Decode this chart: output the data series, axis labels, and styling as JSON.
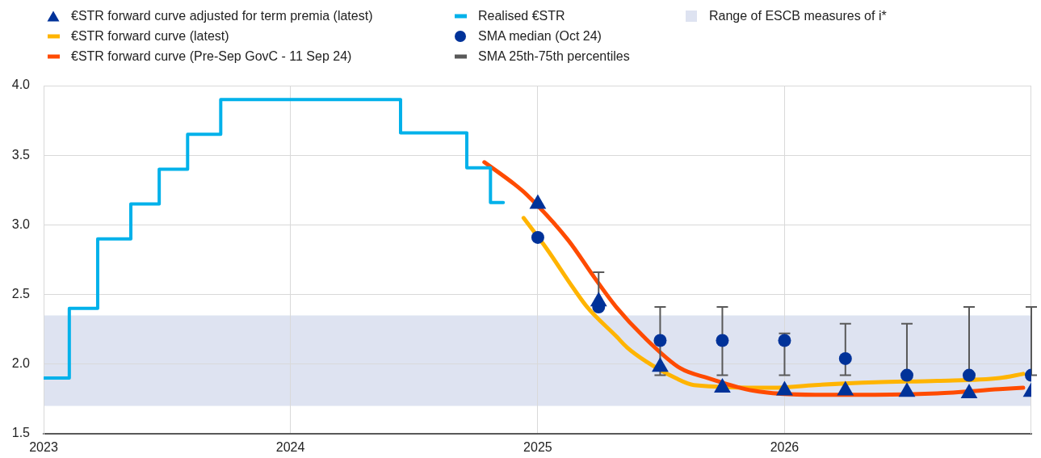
{
  "chart_data": {
    "type": "line",
    "xlim": [
      "2023-01-01",
      "2027-01-01"
    ],
    "xticks": [
      "2023",
      "2024",
      "2025",
      "2026"
    ],
    "ylim": [
      1.5,
      4.0
    ],
    "yticks": [
      1.5,
      {
        "value": 2,
        "label": "2.0"
      },
      2.5,
      {
        "value": 3,
        "label": "3.0"
      },
      3.5,
      {
        "value": 4,
        "label": "4.0"
      }
    ],
    "grid": true,
    "legend": "top",
    "bands": [
      {
        "axis": "y",
        "from": 1.7,
        "to": 2.35,
        "label": "Range of ESCB measures of i*",
        "color": "#dee3f1"
      }
    ],
    "series": [
      {
        "name": "€STR forward curve adjusted for term premia (latest)",
        "type": "scatter",
        "marker": "triangle",
        "color": "#003299",
        "x": [
          "2025-01-01",
          "2025-04-01",
          "2025-07-01",
          "2025-10-01",
          "2026-01-01",
          "2026-04-01",
          "2026-07-01",
          "2026-10-01",
          "2027-01-01"
        ],
        "values": [
          3.15,
          2.45,
          1.98,
          1.83,
          1.81,
          1.81,
          1.8,
          1.79,
          1.8
        ]
      },
      {
        "name": "€STR forward curve (latest)",
        "color": "#ffb400",
        "x": [
          "2024-12-11",
          "2025-01-14",
          "2025-02-22",
          "2025-03-15",
          "2025-04-27",
          "2025-05-13",
          "2025-06-10",
          "2025-07-24",
          "2025-08-20",
          "2025-12-15",
          "2026-02-15",
          "2026-05-15",
          "2026-08-15",
          "2026-11-15",
          "2026-12-20"
        ],
        "values": [
          3.05,
          2.83,
          2.55,
          2.41,
          2.2,
          2.12,
          2.02,
          1.9,
          1.85,
          1.83,
          1.85,
          1.87,
          1.88,
          1.9,
          1.93
        ]
      },
      {
        "name": "€STR forward curve (Pre-Sep GovC - 11 Sep 24)",
        "color": "#ff4b00",
        "x": [
          "2024-10-14",
          "2024-11-28",
          "2024-12-15",
          "2025-02-15",
          "2025-03-26",
          "2025-04-27",
          "2025-06-06",
          "2025-07-31",
          "2025-09-10",
          "2025-11-15",
          "2026-02-15",
          "2026-05-15",
          "2026-08-15",
          "2026-11-15",
          "2026-12-20"
        ],
        "values": [
          3.45,
          3.29,
          3.22,
          2.89,
          2.62,
          2.41,
          2.2,
          1.97,
          1.9,
          1.81,
          1.78,
          1.78,
          1.79,
          1.82,
          1.83
        ]
      },
      {
        "name": "Realised €STR",
        "type": "step",
        "color": "#00b1ea",
        "x": [
          "2023-01-02",
          "2023-02-08",
          "2023-03-22",
          "2023-05-10",
          "2023-06-21",
          "2023-08-02",
          "2023-09-20",
          "2024-06-12",
          "2024-09-18",
          "2024-10-23",
          "2024-11-11"
        ],
        "values": [
          1.9,
          2.4,
          2.9,
          3.15,
          3.4,
          3.65,
          3.9,
          3.66,
          3.41,
          3.16,
          3.16
        ]
      },
      {
        "name": "SMA median (Oct 24)",
        "type": "scatter",
        "marker": "circle",
        "color": "#003299",
        "x": [
          "2025-01-01",
          "2025-04-01",
          "2025-07-01",
          "2025-10-01",
          "2026-01-01",
          "2026-04-01",
          "2026-07-01",
          "2026-10-01",
          "2027-01-01"
        ],
        "values": [
          2.91,
          2.41,
          2.17,
          2.17,
          2.17,
          2.04,
          1.92,
          1.92,
          1.92
        ],
        "errors": [
          null,
          [
            2.41,
            2.66
          ],
          [
            1.92,
            2.41
          ],
          [
            1.92,
            2.41
          ],
          [
            1.92,
            2.22
          ],
          [
            1.92,
            2.29
          ],
          [
            1.92,
            2.29
          ],
          [
            1.92,
            2.41
          ],
          [
            1.92,
            2.41
          ]
        ]
      },
      {
        "name": "SMA 25th-75th percentiles",
        "type": "scatter",
        "marker": "none",
        "color": "#595959"
      }
    ]
  }
}
